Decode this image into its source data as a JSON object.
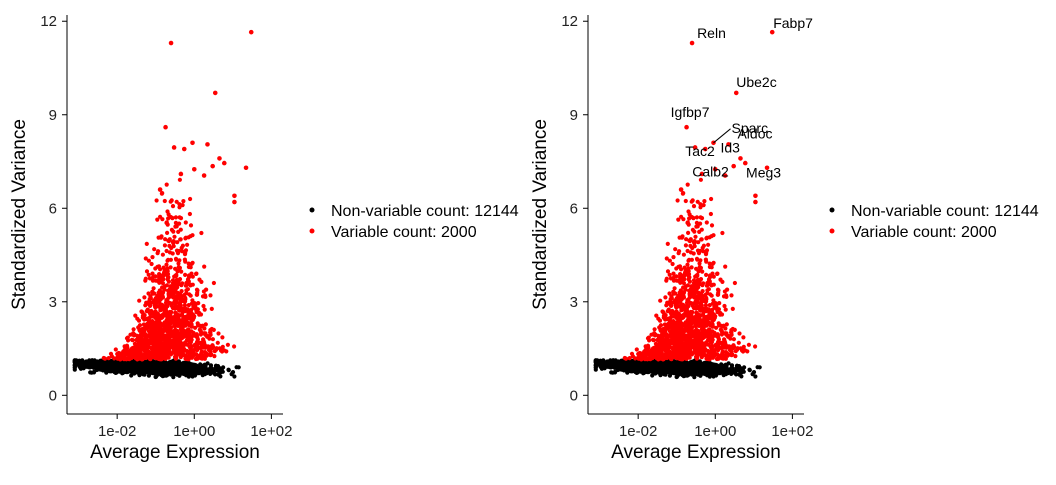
{
  "chart_data": [
    {
      "type": "scatter",
      "title": "",
      "xlabel": "Average Expression",
      "ylabel": "Standardized Variance",
      "x_scale": "log10",
      "xlim": [
        0.0005,
        200
      ],
      "ylim": [
        -0.6,
        12.2
      ],
      "x_ticks": [
        0.01,
        1,
        100
      ],
      "x_tick_labels": [
        "1e-02",
        "1e+00",
        "1e+02"
      ],
      "y_ticks": [
        0,
        3,
        6,
        9,
        12
      ],
      "y_tick_labels": [
        "0",
        "3",
        "6",
        "9",
        "12"
      ],
      "grid": false,
      "legend": {
        "position": "right",
        "entries": [
          {
            "label": "Non-variable count: 12144",
            "color": "#000000"
          },
          {
            "label": "Variable count: 2000",
            "color": "#ff0000"
          }
        ]
      },
      "series": [
        {
          "name": "Non-variable count: 12144",
          "color": "#000000",
          "count": 12144
        },
        {
          "name": "Variable count: 2000",
          "color": "#ff0000",
          "count": 2000
        }
      ],
      "highlight_points": [
        {
          "x": 0.25,
          "y": 11.3
        },
        {
          "x": 30,
          "y": 11.65
        },
        {
          "x": 3.5,
          "y": 9.7
        },
        {
          "x": 0.18,
          "y": 8.6
        },
        {
          "x": 0.9,
          "y": 8.1
        },
        {
          "x": 2.2,
          "y": 8.05
        },
        {
          "x": 0.3,
          "y": 7.95
        },
        {
          "x": 0.55,
          "y": 7.9
        },
        {
          "x": 4.5,
          "y": 7.6
        },
        {
          "x": 6.0,
          "y": 7.45
        },
        {
          "x": 3.0,
          "y": 7.35
        },
        {
          "x": 22,
          "y": 7.3
        },
        {
          "x": 1.0,
          "y": 7.25
        },
        {
          "x": 0.45,
          "y": 7.1
        },
        {
          "x": 1.8,
          "y": 7.05
        },
        {
          "x": 0.13,
          "y": 6.6
        },
        {
          "x": 11,
          "y": 6.4
        },
        {
          "x": 11,
          "y": 6.2
        }
      ]
    },
    {
      "type": "scatter",
      "title": "",
      "xlabel": "Average Expression",
      "ylabel": "Standardized Variance",
      "x_scale": "log10",
      "xlim": [
        0.0005,
        200
      ],
      "ylim": [
        -0.6,
        12.2
      ],
      "x_ticks": [
        0.01,
        1,
        100
      ],
      "x_tick_labels": [
        "1e-02",
        "1e+00",
        "1e+02"
      ],
      "y_ticks": [
        0,
        3,
        6,
        9,
        12
      ],
      "y_tick_labels": [
        "0",
        "3",
        "6",
        "9",
        "12"
      ],
      "grid": false,
      "legend": {
        "position": "right",
        "entries": [
          {
            "label": "Non-variable count: 12144",
            "color": "#000000"
          },
          {
            "label": "Variable count: 2000",
            "color": "#ff0000"
          }
        ]
      },
      "series": [
        {
          "name": "Non-variable count: 12144",
          "color": "#000000",
          "count": 12144
        },
        {
          "name": "Variable count: 2000",
          "color": "#ff0000",
          "count": 2000
        }
      ],
      "highlight_points": [
        {
          "x": 0.25,
          "y": 11.3
        },
        {
          "x": 30,
          "y": 11.65
        },
        {
          "x": 3.5,
          "y": 9.7
        },
        {
          "x": 0.18,
          "y": 8.6
        },
        {
          "x": 0.9,
          "y": 8.1
        },
        {
          "x": 2.2,
          "y": 8.05
        },
        {
          "x": 0.3,
          "y": 7.95
        },
        {
          "x": 0.55,
          "y": 7.9
        },
        {
          "x": 4.5,
          "y": 7.6
        },
        {
          "x": 6.0,
          "y": 7.45
        },
        {
          "x": 3.0,
          "y": 7.35
        },
        {
          "x": 22,
          "y": 7.3
        },
        {
          "x": 1.0,
          "y": 7.25
        },
        {
          "x": 0.45,
          "y": 7.1
        },
        {
          "x": 1.8,
          "y": 7.05
        },
        {
          "x": 0.13,
          "y": 6.6
        },
        {
          "x": 11,
          "y": 6.4
        },
        {
          "x": 11,
          "y": 6.2
        }
      ],
      "annotations": [
        {
          "label": "Fabp7",
          "x": 30,
          "y": 11.65
        },
        {
          "label": "Reln",
          "x": 0.25,
          "y": 11.3
        },
        {
          "label": "Ube2c",
          "x": 3.5,
          "y": 9.7
        },
        {
          "label": "Igfbp7",
          "x": 0.18,
          "y": 8.6
        },
        {
          "label": "Sparc",
          "x": 0.9,
          "y": 8.1
        },
        {
          "label": "Tac2",
          "x": 0.55,
          "y": 7.9
        },
        {
          "label": "Aldoc",
          "x": 2.2,
          "y": 8.05
        },
        {
          "label": "Id3",
          "x": 4.5,
          "y": 7.6
        },
        {
          "label": "Calb2",
          "x": 1.0,
          "y": 7.25
        },
        {
          "label": "Meg3",
          "x": 22,
          "y": 7.3
        }
      ]
    }
  ]
}
